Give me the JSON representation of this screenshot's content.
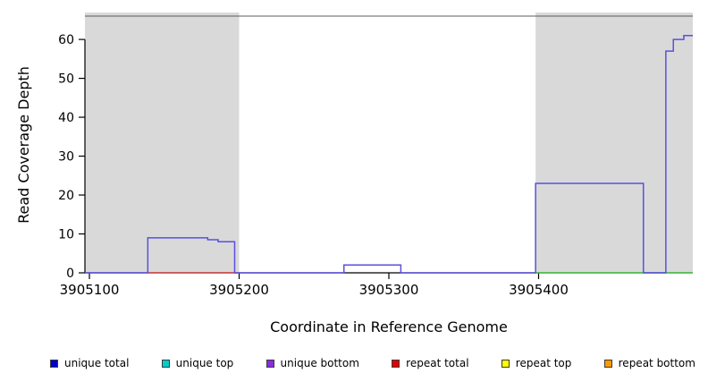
{
  "chart_data": {
    "type": "line",
    "title": "",
    "xlabel": "Coordinate in Reference Genome",
    "ylabel": "Read Coverage Depth",
    "xlim": [
      3905097,
      3905503
    ],
    "ylim": [
      0,
      66
    ],
    "x_ticks": [
      3905100,
      3905200,
      3905300,
      3905400
    ],
    "y_ticks": [
      0,
      10,
      20,
      30,
      40,
      50,
      60
    ],
    "grid": false,
    "colors": {
      "shaded_region": "#d9d9d9",
      "plot_border": "#5c5c5c",
      "axis": "#000000",
      "coverage_line": "#5a50dd",
      "repeat_baseline": "#e03030",
      "annotation_baseline": "#33cc33"
    },
    "shaded_regions": [
      {
        "start": 3905097,
        "end": 3905200
      },
      {
        "start": 3905398,
        "end": 3905503
      }
    ],
    "series": [
      {
        "name": "repeat-total-baseline",
        "color": "#e03030",
        "points": [
          [
            3905139,
            0
          ],
          [
            3905200,
            0
          ]
        ]
      },
      {
        "name": "annotation-baseline",
        "color": "#33cc33",
        "points": [
          [
            3905398,
            0
          ],
          [
            3905503,
            0
          ]
        ]
      },
      {
        "name": "unique-coverage",
        "color": "#5a50dd",
        "points": [
          [
            3905097,
            0
          ],
          [
            3905139,
            0
          ],
          [
            3905139,
            9
          ],
          [
            3905179,
            9
          ],
          [
            3905179,
            8.5
          ],
          [
            3905186,
            8.5
          ],
          [
            3905186,
            8
          ],
          [
            3905197,
            8
          ],
          [
            3905197,
            0
          ],
          [
            3905270,
            0
          ],
          [
            3905270,
            2
          ],
          [
            3905308,
            2
          ],
          [
            3905308,
            0
          ],
          [
            3905398,
            0
          ],
          [
            3905398,
            23
          ],
          [
            3905470,
            23
          ],
          [
            3905470,
            0
          ],
          [
            3905485,
            0
          ],
          [
            3905485,
            57
          ],
          [
            3905490,
            57
          ],
          [
            3905490,
            60
          ],
          [
            3905497,
            60
          ],
          [
            3905497,
            61
          ],
          [
            3905503,
            61
          ]
        ]
      }
    ],
    "legend": [
      {
        "label": "unique total",
        "color": "#0000cd"
      },
      {
        "label": "unique top",
        "color": "#00cdcd"
      },
      {
        "label": "unique bottom",
        "color": "#8a2be2"
      },
      {
        "label": "repeat total",
        "color": "#e00000"
      },
      {
        "label": "repeat top",
        "color": "#ffff00"
      },
      {
        "label": "repeat bottom",
        "color": "#ff9900"
      }
    ]
  }
}
